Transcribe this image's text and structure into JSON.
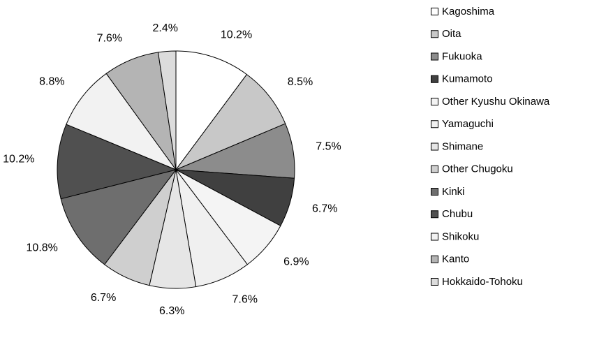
{
  "chart_data": {
    "type": "pie",
    "categories": [
      "Kagoshima",
      "Oita",
      "Fukuoka",
      "Kumamoto",
      "Other Kyushu Okinawa",
      "Yamaguchi",
      "Shimane",
      "Other Chugoku",
      "Kinki",
      "Chubu",
      "Shikoku",
      "Kanto",
      "Hokkaido-Tohoku"
    ],
    "values": [
      10.2,
      8.5,
      7.5,
      6.7,
      6.9,
      7.6,
      6.3,
      6.7,
      10.8,
      10.2,
      8.8,
      7.6,
      2.4
    ],
    "value_labels": [
      "10.2%",
      "8.5%",
      "7.5%",
      "6.7%",
      "6.9%",
      "7.6%",
      "6.3%",
      "6.7%",
      "10.8%",
      "10.2%",
      "8.8%",
      "7.6%",
      "2.4%"
    ],
    "colors": [
      "#ffffff",
      "#c8c8c8",
      "#8c8c8c",
      "#404040",
      "#f4f4f4",
      "#f0f0f0",
      "#e6e6e6",
      "#cfcfcf",
      "#6e6e6e",
      "#505050",
      "#f2f2f2",
      "#b4b4b4",
      "#dcdcdc"
    ]
  }
}
